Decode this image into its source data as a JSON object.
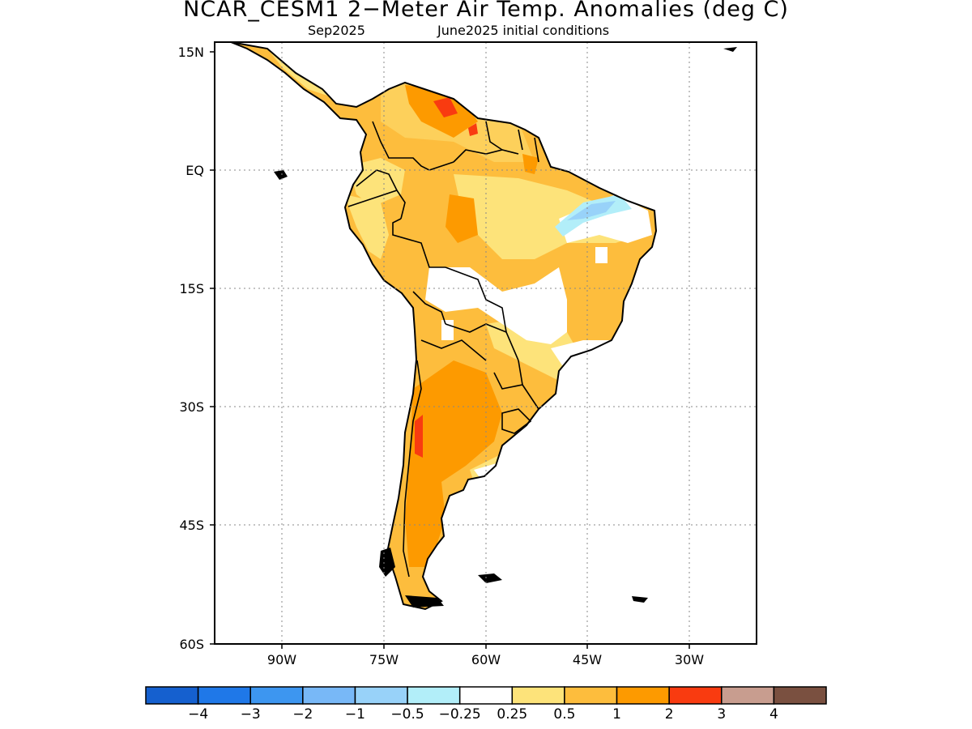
{
  "title": "NCAR_CESM1 2−Meter Air Temp. Anomalies (deg C)",
  "subtitle_left": "Sep2025",
  "subtitle_right": "June2025 initial conditions",
  "lat_labels": [
    "15N",
    "EQ",
    "15S",
    "30S",
    "45S",
    "60S"
  ],
  "lon_labels": [
    "90W",
    "75W",
    "60W",
    "45W",
    "30W"
  ],
  "legend": {
    "colors": [
      "#1560cf",
      "#1f78e8",
      "#3d96f0",
      "#78b8f7",
      "#98d2f9",
      "#b2eef9",
      "#ffffff",
      "#fde37a",
      "#fdbd3d",
      "#fd9a00",
      "#f93b10",
      "#c89d8f",
      "#7a5040"
    ],
    "labels": [
      "−4",
      "−3",
      "−2",
      "−1",
      "−0.5",
      "−0.25",
      "0.25",
      "0.5",
      "1",
      "2",
      "3",
      "4"
    ]
  },
  "map": {
    "region": "South America",
    "lon_range": [
      -100,
      -20
    ],
    "lat_range": [
      -60,
      15
    ],
    "anomaly_fill": {
      "base": "#fdbd3d",
      "light": "#fde37a",
      "strong": "#fd9a00",
      "max": "#f93b10",
      "neutral": "#ffffff",
      "cool": "#98d2f9",
      "cool_edge": "#b2eef9"
    }
  }
}
